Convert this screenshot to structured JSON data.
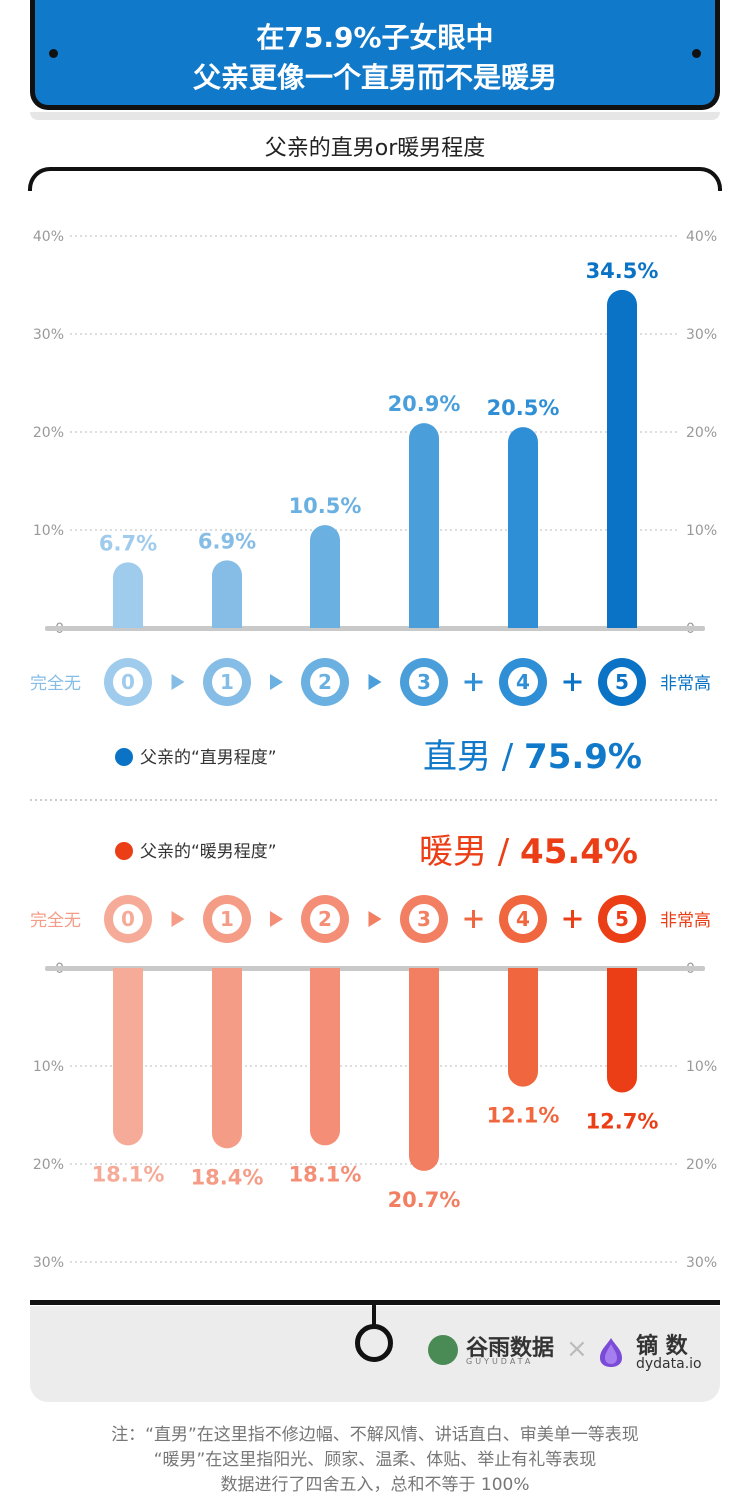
{
  "header": {
    "title_line1": "在75.9%子女眼中",
    "title_line2": "父亲更像一个直男而不是暖男"
  },
  "subtitle": "父亲的直男or暖男程度",
  "colors": {
    "title_bg": "#1079c9",
    "blue_scale": [
      "#9fcbec",
      "#86bde6",
      "#6ab0e0",
      "#4a9fdb",
      "#2f8fd6",
      "#0b73c5"
    ],
    "red_scale": [
      "#f6ab98",
      "#f59c87",
      "#f48e76",
      "#f27f62",
      "#f0673f",
      "#ec3e16"
    ]
  },
  "chart_data": [
    {
      "type": "bar",
      "title": "父亲的“直男程度”",
      "categories": [
        "0",
        "1",
        "2",
        "3",
        "4",
        "5"
      ],
      "values": [
        6.7,
        6.9,
        10.5,
        20.9,
        20.5,
        34.5
      ],
      "value_labels": [
        "6.7%",
        "6.9%",
        "10.5%",
        "20.9%",
        "20.5%",
        "34.5%"
      ],
      "ylim": [
        0,
        40
      ],
      "yticks": [
        "0",
        "10%",
        "20%",
        "30%",
        "40%"
      ],
      "scale_low": "完全无",
      "scale_high": "非常高",
      "summary": "直男 / 75.9%",
      "summary_label": "直男",
      "summary_value": "75.9%",
      "grid": true
    },
    {
      "type": "bar",
      "title": "父亲的“暖男程度”",
      "categories": [
        "0",
        "1",
        "2",
        "3",
        "4",
        "5"
      ],
      "values": [
        18.1,
        18.4,
        18.1,
        20.7,
        12.1,
        12.7
      ],
      "value_labels": [
        "18.1%",
        "18.4%",
        "18.1%",
        "20.7%",
        "12.1%",
        "12.7%"
      ],
      "ylim": [
        0,
        30
      ],
      "yticks": [
        "0",
        "10%",
        "20%",
        "30%"
      ],
      "scale_low": "完全无",
      "scale_high": "非常高",
      "summary": "暖男 / 45.4%",
      "summary_label": "暖男",
      "summary_value": "45.4%",
      "grid": true,
      "orientation": "downward"
    }
  ],
  "legend": {
    "blue": "父亲的“直男程度”",
    "red": "父亲的“暖男程度”"
  },
  "footer": {
    "brand1": "谷雨数据",
    "brand1_sub": "GUYUDATA",
    "separator": "×",
    "brand2": "镝 数",
    "brand2_sub": "dydata.io"
  },
  "notes": [
    "注：“直男”在这里指不修边幅、不解风情、讲话直白、审美单一等表现",
    "“暖男”在这里指阳光、顾家、温柔、体贴、举止有礼等表现",
    "数据进行了四舍五入，总和不等于 100%"
  ],
  "icons": {
    "arrow": "triangle-right-icon",
    "plus": "plus-icon",
    "legend_dot": "filled-circle-icon"
  }
}
